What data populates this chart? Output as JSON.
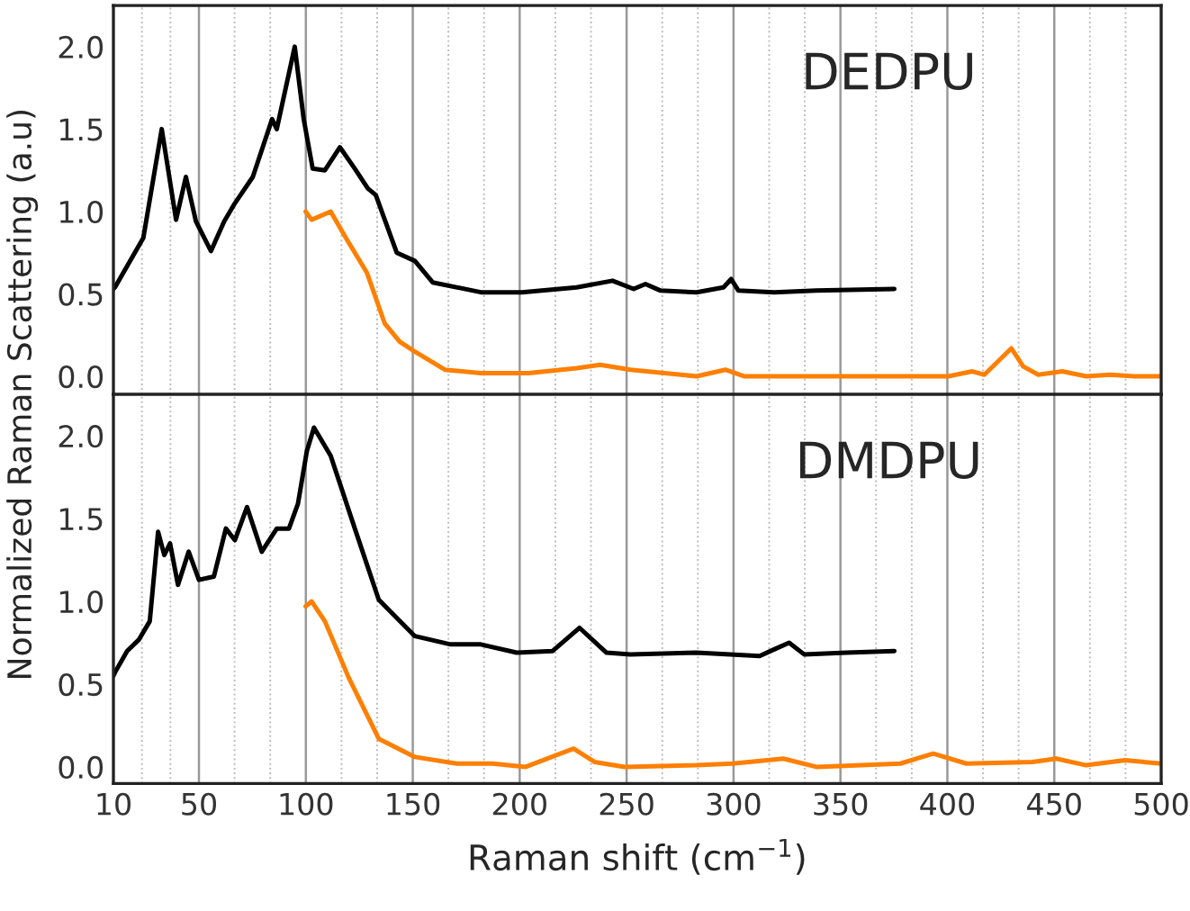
{
  "chart_data": [
    {
      "type": "line",
      "ylabel": "Normalized Raman Scattering (a.u)",
      "annotations": [
        "DEDPU"
      ],
      "xlim": [
        10,
        500
      ],
      "xticks": [
        10,
        50,
        100,
        150,
        200,
        250,
        300,
        350,
        400,
        450,
        500
      ],
      "ylim": [
        -0.11,
        2.25
      ],
      "yticks": [
        {
          "value": 0,
          "label": "0.0"
        },
        {
          "value": 0.5,
          "label": "0.5"
        },
        {
          "value": 1,
          "label": "1.0"
        },
        {
          "value": 1.5,
          "label": "1.5"
        },
        {
          "value": 2,
          "label": "2.0"
        }
      ],
      "grid": "x",
      "tick_labels": "y",
      "line_style": "solid",
      "series": [
        {
          "color": "#000000",
          "x": [
            10,
            10.7,
            24,
            32.6,
            39.3,
            43.9,
            48.6,
            55.6,
            61.8,
            66.8,
            75.2,
            84.2,
            86.4,
            94.8,
            99,
            103.2,
            108.9,
            115.9,
            122.9,
            129,
            132.7,
            142.5,
            151,
            159.3,
            181.8,
            201,
            226.6,
            243.4,
            253.3,
            258.8,
            265.9,
            282.7,
            295.3,
            298.9,
            302.3,
            319,
            338.7,
            375.2
          ],
          "values": [
            0.53,
            0.54,
            0.84,
            1.5,
            0.95,
            1.21,
            0.94,
            0.76,
            0.94,
            1.05,
            1.21,
            1.56,
            1.5,
            2.0,
            1.56,
            1.26,
            1.25,
            1.39,
            1.26,
            1.14,
            1.1,
            0.75,
            0.7,
            0.57,
            0.51,
            0.51,
            0.54,
            0.58,
            0.53,
            0.56,
            0.52,
            0.51,
            0.54,
            0.59,
            0.52,
            0.51,
            0.52,
            0.53
          ]
        },
        {
          "color": "#ff7f00",
          "x": [
            99.9,
            102.7,
            111.6,
            118.7,
            128.5,
            136.9,
            143.9,
            151,
            165,
            181.8,
            204.2,
            226.6,
            237.6,
            251.8,
            282.7,
            296.2,
            305.1,
            338.7,
            366.8,
            400.5,
            411.6,
            417.3,
            429.9,
            435.5,
            442.5,
            453.7,
            464.9,
            476.1,
            487.3,
            500
          ],
          "values": [
            1.0,
            0.95,
            1.0,
            0.84,
            0.63,
            0.32,
            0.21,
            0.15,
            0.04,
            0.02,
            0.02,
            0.05,
            0.07,
            0.04,
            0.0,
            0.04,
            0.0,
            0.0,
            0.0,
            0.0,
            0.03,
            0.01,
            0.17,
            0.06,
            0.01,
            0.03,
            0.0,
            0.01,
            0.0,
            0.0
          ]
        }
      ]
    },
    {
      "type": "line",
      "xlabel": "Raman shift (cm$^{−1}$)",
      "annotations": [
        "DMDPU"
      ],
      "xlim": [
        10,
        500
      ],
      "xticks": [
        10,
        50,
        100,
        150,
        200,
        250,
        300,
        350,
        400,
        450,
        500
      ],
      "ylim": [
        -0.1,
        2.25
      ],
      "yticks": [
        {
          "value": 0,
          "label": "0.0"
        },
        {
          "value": 0.5,
          "label": "0.5"
        },
        {
          "value": 1,
          "label": "1.0"
        },
        {
          "value": 1.5,
          "label": "1.5"
        },
        {
          "value": 2,
          "label": "2.0"
        }
      ],
      "grid": "x",
      "line_style": "solid",
      "series": [
        {
          "color": "#000000",
          "x": [
            10,
            10.7,
            16.4,
            22,
            27,
            30.9,
            33.8,
            36.5,
            40.2,
            45.2,
            50,
            57,
            62.6,
            66.8,
            72.5,
            79.4,
            86.4,
            92.1,
            96.3,
            100.5,
            103.8,
            111.6,
            122.9,
            134.1,
            151,
            167.7,
            181.8,
            198.6,
            215.4,
            228,
            240.6,
            251.8,
            282.7,
            312.2,
            319,
            326,
            333,
            352.8,
            375.2
          ],
          "values": [
            0.55,
            0.57,
            0.7,
            0.77,
            0.88,
            1.42,
            1.28,
            1.35,
            1.1,
            1.3,
            1.13,
            1.15,
            1.44,
            1.37,
            1.57,
            1.3,
            1.44,
            1.44,
            1.59,
            1.91,
            2.05,
            1.88,
            1.44,
            1.01,
            0.79,
            0.74,
            0.74,
            0.69,
            0.7,
            0.84,
            0.69,
            0.68,
            0.69,
            0.67,
            0.71,
            0.75,
            0.68,
            0.69,
            0.7
          ]
        },
        {
          "color": "#ff7f00",
          "x": [
            99.9,
            102.7,
            108.9,
            120,
            134.1,
            151,
            170.5,
            187.3,
            202.8,
            216.8,
            225.2,
            235,
            249.1,
            282.7,
            299.5,
            323.3,
            338.7,
            378,
            393.4,
            408.9,
            439.7,
            450.9,
            464.9,
            483.1,
            500
          ],
          "values": [
            0.97,
            1.0,
            0.88,
            0.54,
            0.17,
            0.06,
            0.02,
            0.02,
            0.0,
            0.07,
            0.11,
            0.03,
            0.0,
            0.01,
            0.02,
            0.05,
            0.0,
            0.02,
            0.08,
            0.02,
            0.03,
            0.05,
            0.01,
            0.04,
            0.02
          ]
        }
      ]
    }
  ]
}
